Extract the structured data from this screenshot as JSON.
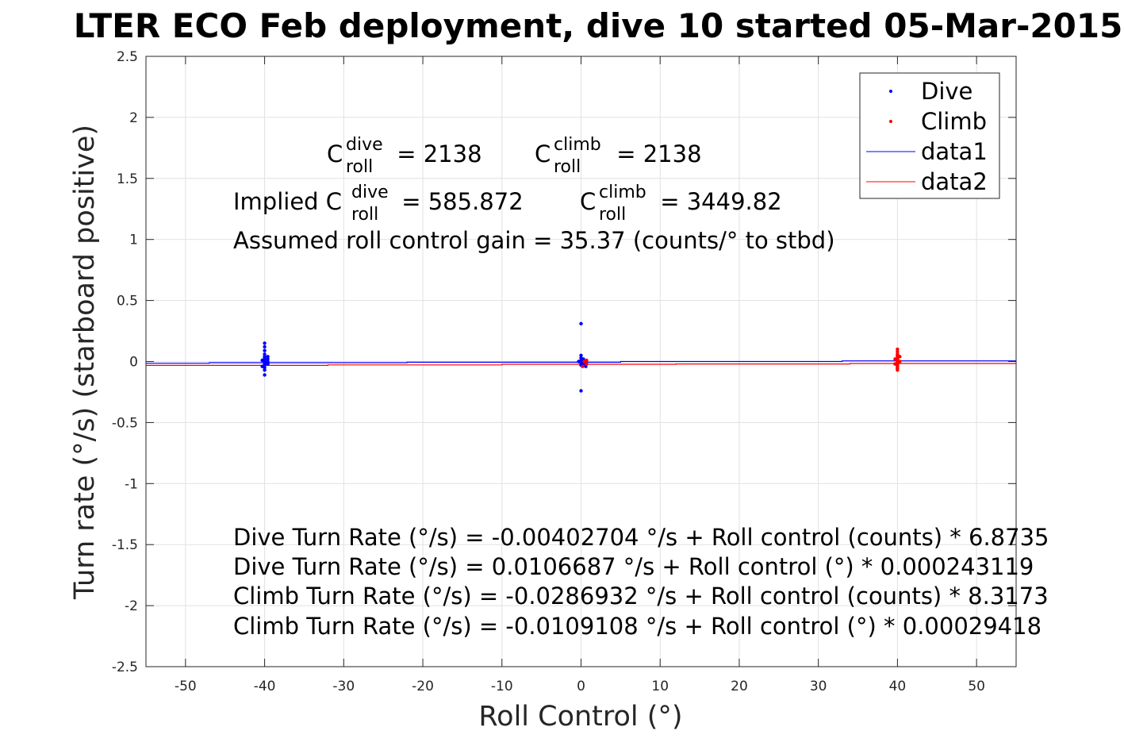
{
  "chart_data": {
    "type": "scatter",
    "title": "LTER ECO Feb deployment, dive 10 started 05-Mar-2015",
    "xlabel": "Roll Control (°)",
    "ylabel": "Turn rate (°/s) (starboard positive)",
    "xlim": [
      -55,
      55
    ],
    "ylim": [
      -2.5,
      2.5
    ],
    "xticks": [
      "-50",
      "-40",
      "-30",
      "-20",
      "-10",
      "0",
      "10",
      "20",
      "30",
      "40",
      "50"
    ],
    "yticks": [
      "2.5",
      "2",
      "1.5",
      "1",
      "0.5",
      "0",
      "-0.5",
      "-1",
      "-1.5",
      "-2",
      "-2.5"
    ],
    "grid": true,
    "legend_position": "top-right",
    "legend": [
      "Dive",
      "Climb",
      "data1",
      "data2"
    ],
    "series": [
      {
        "name": "Dive",
        "kind": "points",
        "color": "#0000ff",
        "points": [
          [
            -40,
            0.15
          ],
          [
            -40,
            0.12
          ],
          [
            -40,
            0.09
          ],
          [
            -40,
            0.06
          ],
          [
            -40,
            0.04
          ],
          [
            -40,
            0.03
          ],
          [
            -40,
            0.02
          ],
          [
            -40,
            0.01
          ],
          [
            -40,
            0.0
          ],
          [
            -40,
            -0.01
          ],
          [
            -40,
            -0.02
          ],
          [
            -40,
            -0.03
          ],
          [
            -40,
            -0.05
          ],
          [
            -40,
            -0.07
          ],
          [
            -40,
            -0.11
          ],
          [
            -39.6,
            0.04
          ],
          [
            -39.6,
            0.0
          ],
          [
            -39.6,
            -0.02
          ],
          [
            -39.6,
            0.02
          ],
          [
            -40.3,
            0.01
          ],
          [
            -40.3,
            -0.04
          ],
          [
            0,
            0.31
          ],
          [
            0,
            0.05
          ],
          [
            0,
            0.03
          ],
          [
            0,
            0.01
          ],
          [
            0,
            0.0
          ],
          [
            0,
            -0.01
          ],
          [
            0,
            -0.03
          ],
          [
            0,
            -0.24
          ],
          [
            -0.3,
            0.0
          ],
          [
            0.3,
            0.02
          ],
          [
            0.3,
            -0.02
          ],
          [
            0.6,
            0.0
          ],
          [
            0.6,
            -0.04
          ]
        ]
      },
      {
        "name": "Climb",
        "kind": "points",
        "color": "#ff0000",
        "points": [
          [
            40,
            0.1
          ],
          [
            40,
            0.08
          ],
          [
            40,
            0.06
          ],
          [
            40,
            0.05
          ],
          [
            40,
            0.04
          ],
          [
            40,
            0.03
          ],
          [
            40,
            0.02
          ],
          [
            40,
            0.01
          ],
          [
            40,
            0.0
          ],
          [
            40,
            -0.01
          ],
          [
            40,
            -0.02
          ],
          [
            40,
            -0.03
          ],
          [
            40,
            -0.04
          ],
          [
            40,
            -0.05
          ],
          [
            40,
            -0.06
          ],
          [
            40,
            -0.07
          ],
          [
            39.7,
            0.02
          ],
          [
            39.7,
            -0.02
          ],
          [
            40.3,
            0.0
          ],
          [
            40.3,
            0.04
          ],
          [
            0.4,
            0.0
          ],
          [
            0.7,
            -0.02
          ],
          [
            0.7,
            0.01
          ],
          [
            0.2,
            -0.04
          ]
        ]
      },
      {
        "name": "data1",
        "kind": "line",
        "color": "#0000ff",
        "points": [
          [
            -55,
            -0.014
          ],
          [
            -47,
            -0.014
          ],
          [
            -47,
            -0.01
          ],
          [
            -22,
            -0.01
          ],
          [
            -22,
            -0.006
          ],
          [
            5,
            -0.006
          ],
          [
            5,
            0.0
          ],
          [
            33,
            0.0
          ],
          [
            33,
            0.005
          ],
          [
            55,
            0.005
          ]
        ]
      },
      {
        "name": "data2",
        "kind": "line",
        "color": "#ff0000",
        "points": [
          [
            -55,
            -0.032
          ],
          [
            -32,
            -0.032
          ],
          [
            -32,
            -0.028
          ],
          [
            -10,
            -0.028
          ],
          [
            -10,
            -0.023
          ],
          [
            12,
            -0.023
          ],
          [
            12,
            -0.02
          ],
          [
            34,
            -0.02
          ],
          [
            34,
            -0.016
          ],
          [
            55,
            -0.016
          ]
        ]
      }
    ],
    "annotations": {
      "line1": {
        "c_dive": {
          "C": "C",
          "sup": "dive",
          "sub": "roll",
          "value": " = 2138"
        },
        "c_climb": {
          "C": "C",
          "sup": "climb",
          "sub": "roll",
          "value": " = 2138"
        }
      },
      "line2": {
        "prefix": "Implied C",
        "c_dive": {
          "sup": "dive",
          "sub": "roll",
          "value": " = 585.872"
        },
        "c_climb": {
          "C": "C",
          "sup": "climb",
          "sub": "roll",
          "value": " = 3449.82"
        }
      },
      "line3": "Assumed roll control gain = 35.37 (counts/° to stbd)",
      "equations": [
        "Dive Turn Rate (°/s) = -0.00402704 °/s + Roll control (counts) * 6.8735",
        "Dive Turn Rate (°/s) = 0.0106687 °/s + Roll control (°) * 0.000243119",
        "Climb Turn Rate (°/s) = -0.0286932 °/s + Roll control (counts) * 8.3173",
        "Climb Turn Rate (°/s) = -0.0109108 °/s + Roll control (°) * 0.00029418"
      ]
    }
  }
}
